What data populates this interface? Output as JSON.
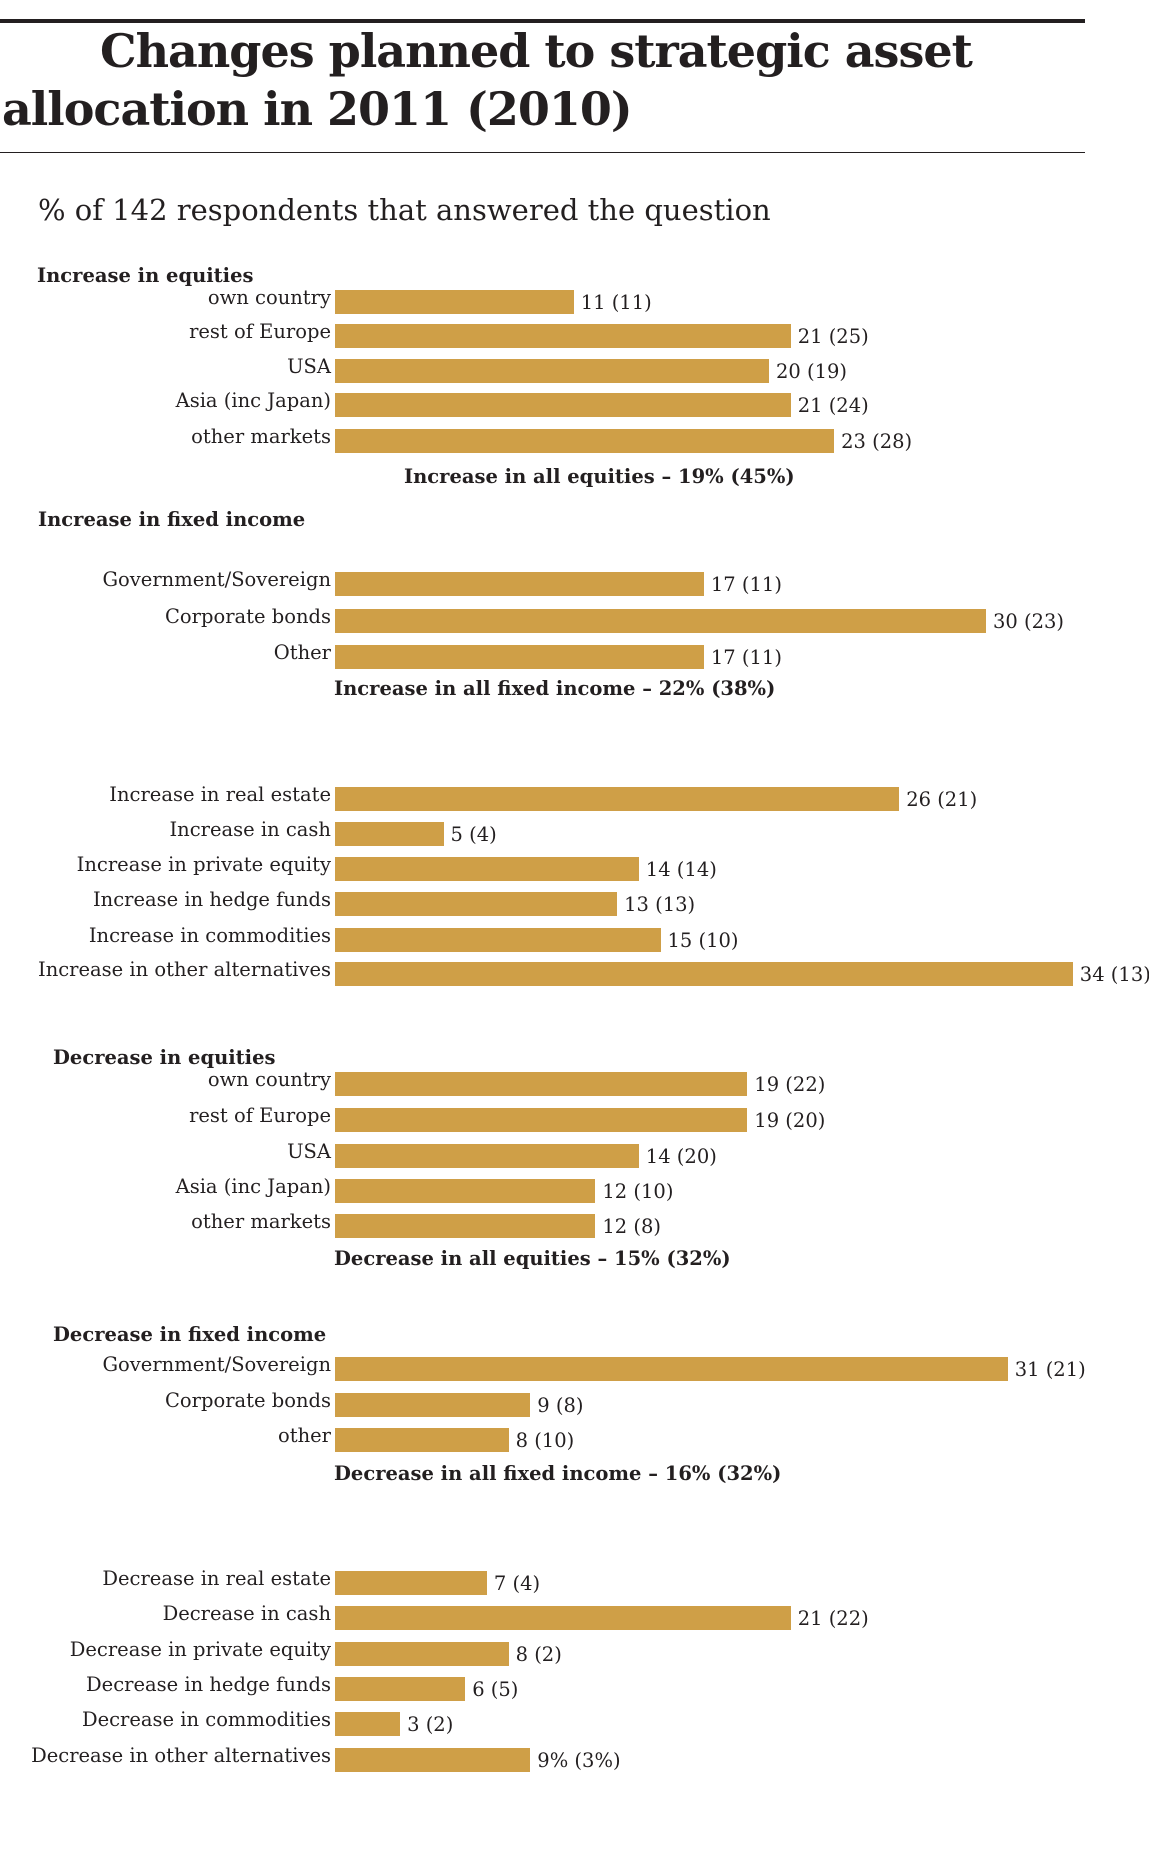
{
  "title": "Changes planned to strategic asset allocation in 2011 (2010)",
  "subtitle": "% of 142 respondents that answered the question",
  "colors": {
    "bar": "#cf9f47",
    "text": "#231f20"
  },
  "chart_data": {
    "type": "bar",
    "orientation": "horizontal",
    "groups": [
      {
        "title": "Increase in equities",
        "categories": [
          "own country",
          "rest of Europe",
          "USA",
          "Asia (inc Japan)",
          "other markets"
        ],
        "values_2011": [
          11,
          21,
          20,
          21,
          23
        ],
        "values_2010": [
          11,
          25,
          19,
          24,
          28
        ],
        "labels": [
          "11 (11)",
          "21 (25)",
          "20 (19)",
          "21 (24)",
          "23 (28)"
        ],
        "summary": "Increase in all equities – 19% (45%)"
      },
      {
        "title": "Increase in  fixed income",
        "categories": [
          "Government/Sovereign",
          "Corporate bonds",
          "Other"
        ],
        "values_2011": [
          17,
          30,
          17
        ],
        "values_2010": [
          11,
          23,
          11
        ],
        "labels": [
          "17 (11)",
          "30 (23)",
          "17 (11)"
        ],
        "summary": "Increase in all fixed income – 22% (38%)"
      },
      {
        "title": "",
        "categories": [
          "Increase in real estate",
          "Increase in cash",
          "Increase in private equity",
          "Increase in hedge funds",
          "Increase in commodities",
          "Increase in other alternatives"
        ],
        "values_2011": [
          26,
          5,
          14,
          13,
          15,
          34
        ],
        "values_2010": [
          21,
          4,
          14,
          13,
          10,
          13
        ],
        "labels": [
          "26 (21)",
          "5 (4)",
          "14 (14)",
          "13 (13)",
          "15 (10)",
          "34 (13)"
        ],
        "summary": ""
      },
      {
        "title": "Decrease in equities",
        "categories": [
          "own country",
          "rest of Europe",
          "USA",
          "Asia (inc Japan)",
          "other markets"
        ],
        "values_2011": [
          19,
          19,
          14,
          12,
          12
        ],
        "values_2010": [
          22,
          20,
          20,
          10,
          8
        ],
        "labels": [
          "19 (22)",
          "19 (20)",
          "14 (20)",
          "12 (10)",
          "12 (8)"
        ],
        "summary": "Decrease in all equities – 15% (32%)"
      },
      {
        "title": "Decrease in fixed income",
        "categories": [
          "Government/Sovereign",
          "Corporate bonds",
          "other"
        ],
        "values_2011": [
          31,
          9,
          8
        ],
        "values_2010": [
          21,
          8,
          10
        ],
        "labels": [
          "31 (21)",
          "9 (8)",
          "8 (10)"
        ],
        "summary": "Decrease in all fixed income – 16% (32%)"
      },
      {
        "title": "",
        "categories": [
          "Decrease in real estate",
          "Decrease in cash",
          "Decrease in private equity",
          "Decrease in hedge funds",
          "Decrease in commodities",
          "Decrease in other alternatives"
        ],
        "values_2011": [
          7,
          21,
          8,
          6,
          3,
          9
        ],
        "values_2010": [
          4,
          22,
          2,
          5,
          2,
          3
        ],
        "labels": [
          "7 (4)",
          "21 (22)",
          "8 (2)",
          "6 (5)",
          "3 (2)",
          "9% (3%)"
        ],
        "summary": ""
      }
    ]
  }
}
